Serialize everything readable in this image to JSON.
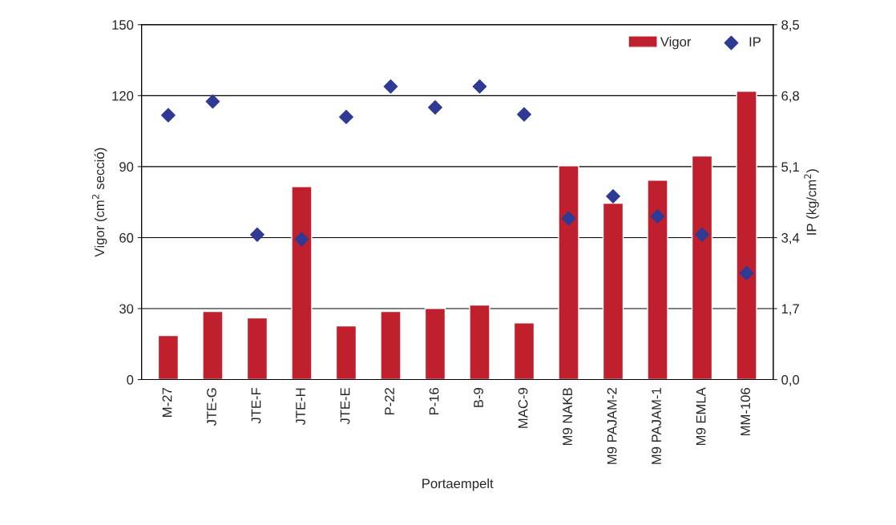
{
  "chart_data": {
    "type": "bar",
    "xlabel": "Portaempelt",
    "ylabel": "Vigor (cm$^{2}$ secció)",
    "y2label": "IP (kg/cm$^{2}$)",
    "categories": [
      "M-27",
      "JTE-G",
      "JTE-F",
      "JTE-H",
      "JTE-E",
      "P-22",
      "P-16",
      "B-9",
      "MAC-9",
      "M9 NAKB",
      "M9 PAJAM-2",
      "M9 PAJAM-1",
      "M9 EMLA",
      "MM-106"
    ],
    "series": [
      {
        "name": "Vigor",
        "color": "#c0202e",
        "values": [
          18.6,
          28.8,
          26.1,
          81.6,
          22.7,
          28.8,
          30.1,
          31.5,
          24.0,
          90.4,
          74.5,
          84.3,
          94.5,
          121.9
        ]
      },
      {
        "name": "IP",
        "type": "scatter",
        "axis": "y2",
        "marker": "diamond",
        "color": "#2e3a93",
        "values": [
          6.33,
          6.66,
          3.47,
          3.36,
          6.29,
          7.02,
          6.52,
          7.02,
          6.35,
          3.86,
          4.39,
          3.91,
          3.47,
          2.55
        ]
      }
    ],
    "ylim": [
      0,
      150
    ],
    "yticks": [
      0,
      30,
      60,
      90,
      120,
      150
    ],
    "y2lim": [
      0,
      8.5
    ],
    "y2ticks": [
      {
        "value": 0,
        "label": "0,0"
      },
      {
        "value": 1.7,
        "label": "1,7"
      },
      {
        "value": 3.4,
        "label": "3,4"
      },
      {
        "value": 5.1,
        "label": "5,1"
      },
      {
        "value": 6.8,
        "label": "6,8"
      },
      {
        "value": 8.5,
        "label": "8,5"
      }
    ],
    "grid": "y",
    "legend": "top right"
  }
}
